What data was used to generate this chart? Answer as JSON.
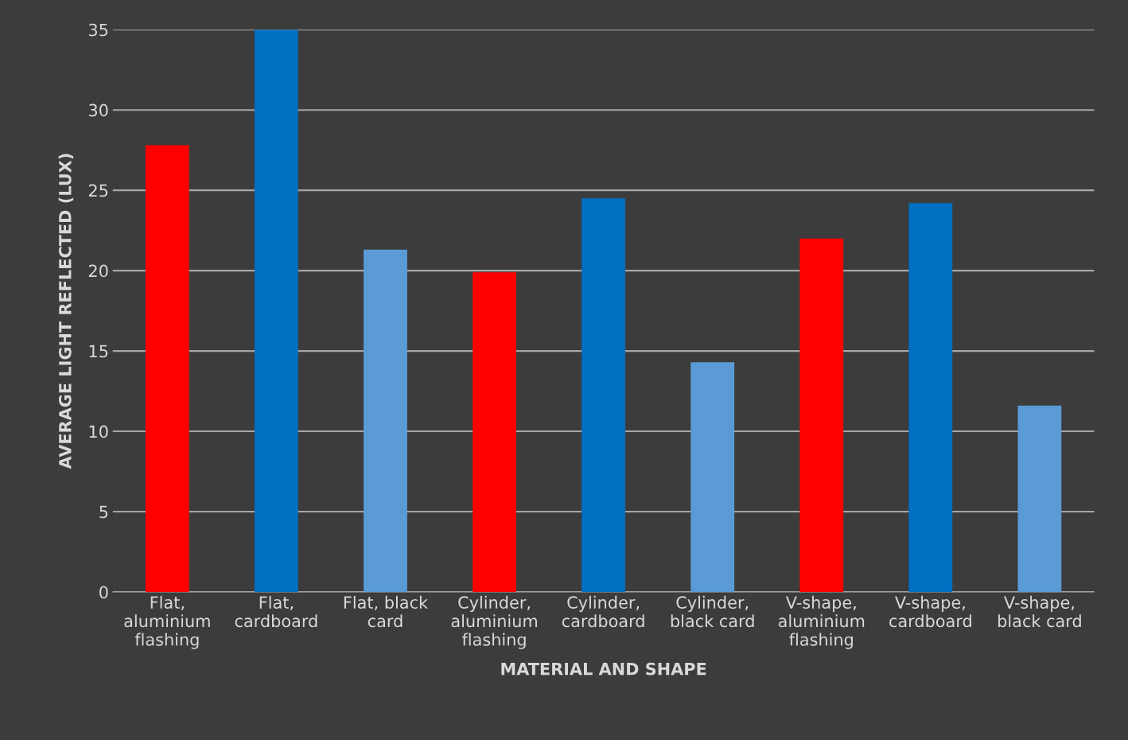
{
  "chart_data": {
    "type": "bar",
    "xlabel": "MATERIAL AND SHAPE",
    "ylabel": "AVERAGE LIGHT REFLECTED (LUX)",
    "categories": [
      "Flat,\naluminium\nflashing",
      "Flat,\ncardboard",
      "Flat, black\ncard",
      "Cylinder,\naluminium\nflashing",
      "Cylinder,\ncardboard",
      "Cylinder,\nblack card",
      "V-shape,\naluminium\nflashing",
      "V-shape,\ncardboard",
      "V-shape,\nblack card"
    ],
    "values": [
      27.8,
      35.0,
      21.3,
      19.9,
      24.5,
      14.3,
      22.0,
      24.2,
      11.6
    ],
    "colors": [
      "#ff0000",
      "#0070c0",
      "#5b9bd5",
      "#ff0000",
      "#0070c0",
      "#5b9bd5",
      "#ff0000",
      "#0070c0",
      "#5b9bd5"
    ],
    "ylim": [
      0,
      35
    ],
    "yticks": [
      0,
      5,
      10,
      15,
      20,
      25,
      30,
      35
    ],
    "grid": "y"
  }
}
